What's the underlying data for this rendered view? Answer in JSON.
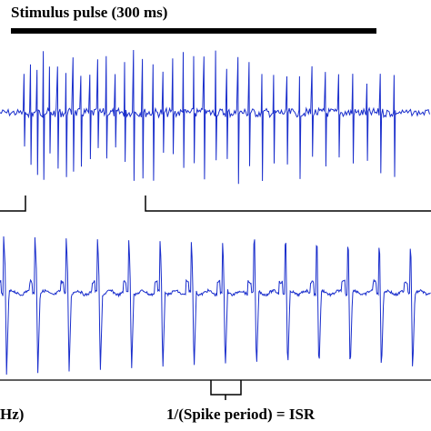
{
  "chart_data": {
    "type": "line",
    "colors": {
      "trace": "#1a2ecc",
      "annotation": "#000000",
      "background": "#ffffff"
    },
    "stimulus": {
      "label": "Stimulus pulse (300 ms)"
    },
    "top_trace": {
      "description_visible": "",
      "spike_count": 46
    },
    "bottom_trace": {
      "spike_count": 14
    },
    "annotations": {
      "isr_label": "1/(Spike period) = ISR",
      "partial_left_label": "Hz)"
    }
  }
}
